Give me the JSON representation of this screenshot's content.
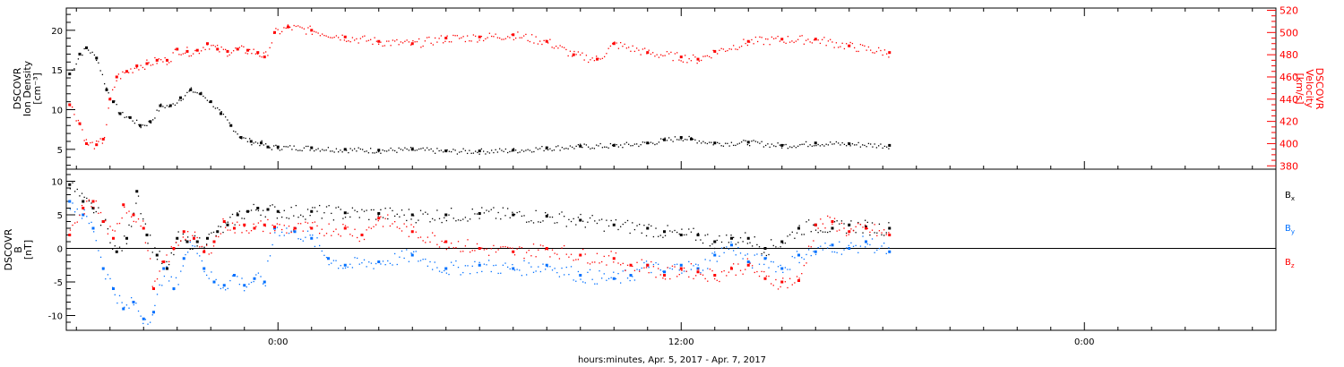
{
  "xaxis": {
    "title": "hours:minutes, Apr.  5, 2017 - Apr.  7, 2017",
    "tick_labels": [
      "0:00",
      "12:00",
      "0:00"
    ],
    "tick_hours": [
      6,
      18,
      30
    ],
    "range_hours": [
      -0.3,
      35.7
    ]
  },
  "chart_data": [
    {
      "type": "scatter",
      "ylabel_lines": [
        "DSCOVR",
        "Ion Density",
        "[cm⁻³]"
      ],
      "ylabel_right_lines": [
        "DSCOVR",
        "Velocity",
        "[km/s]"
      ],
      "ylim": [
        2.5,
        22.8
      ],
      "ytick_labels": [
        "5",
        "10",
        "15",
        "20"
      ],
      "ytick_values": [
        5,
        10,
        15,
        20
      ],
      "ylim_right": [
        377,
        522
      ],
      "ytick_right_labels": [
        "380",
        "400",
        "420",
        "440",
        "460",
        "480",
        "500",
        "520"
      ],
      "ytick_right_values": [
        380,
        400,
        420,
        440,
        460,
        480,
        500,
        520
      ],
      "series": [
        {
          "axis": "left",
          "color": "#000000",
          "x": [
            -0.2,
            0.1,
            0.3,
            0.6,
            0.9,
            1.1,
            1.3,
            1.6,
            1.9,
            2.2,
            2.5,
            2.8,
            3.1,
            3.4,
            3.7,
            4.0,
            4.3,
            4.6,
            4.9,
            5.2,
            5.5,
            5.7,
            6.0,
            7.0,
            8.0,
            9.0,
            10.0,
            11.0,
            12.0,
            13.0,
            14.0,
            15.0,
            16.0,
            17.0,
            17.5,
            18.0,
            18.3,
            19.0,
            20.0,
            21.0,
            22.0,
            23.0,
            24.2
          ],
          "y": [
            14.5,
            17.0,
            17.8,
            16.5,
            12.5,
            11.0,
            9.5,
            9.0,
            8.0,
            8.5,
            10.5,
            10.5,
            11.5,
            12.5,
            12.0,
            11.0,
            9.5,
            8.0,
            6.5,
            6.0,
            5.8,
            5.3,
            5.3,
            5.2,
            5.0,
            4.9,
            5.0,
            4.8,
            4.8,
            4.9,
            5.2,
            5.4,
            5.5,
            5.8,
            6.2,
            6.5,
            6.3,
            5.8,
            5.9,
            5.5,
            5.8,
            5.7,
            5.5
          ]
        },
        {
          "axis": "right",
          "color": "#ff0000",
          "x": [
            -0.2,
            0.1,
            0.3,
            0.6,
            0.8,
            1.0,
            1.2,
            1.5,
            1.8,
            2.1,
            2.4,
            2.7,
            3.0,
            3.3,
            3.6,
            3.9,
            4.2,
            4.5,
            4.8,
            5.1,
            5.4,
            5.6,
            5.9,
            6.3,
            7.0,
            8.0,
            9.0,
            10.0,
            11.0,
            12.0,
            13.0,
            14.0,
            14.8,
            15.5,
            16.0,
            17.0,
            18.0,
            18.5,
            19.0,
            20.0,
            21.0,
            22.0,
            23.0,
            24.2
          ],
          "y": [
            435,
            418,
            400,
            399,
            404,
            440,
            460,
            465,
            470,
            472,
            475,
            475,
            485,
            483,
            484,
            490,
            485,
            483,
            485,
            484,
            482,
            478,
            500,
            505,
            502,
            496,
            492,
            490,
            495,
            496,
            498,
            492,
            480,
            476,
            490,
            482,
            478,
            476,
            483,
            492,
            494,
            494,
            488,
            482
          ]
        }
      ]
    },
    {
      "type": "scatter",
      "ylabel_lines": [
        "DSCOVR",
        "B",
        "[nT]"
      ],
      "ylim": [
        -12.2,
        11.8
      ],
      "ytick_labels": [
        "-10",
        "-5",
        "0",
        "5",
        "10"
      ],
      "ytick_values": [
        -10,
        -5,
        0,
        5,
        10
      ],
      "zero_line": true,
      "series": [
        {
          "name": "Bx",
          "color": "#000000",
          "x": [
            -0.2,
            0.2,
            0.5,
            0.8,
            1.2,
            1.5,
            1.8,
            2.1,
            2.4,
            2.7,
            3.0,
            3.3,
            3.6,
            3.9,
            4.2,
            4.5,
            4.8,
            5.1,
            5.4,
            5.7,
            6.0,
            7.0,
            8.0,
            9.0,
            10.0,
            11.0,
            12.0,
            13.0,
            14.0,
            15.0,
            16.0,
            17.0,
            17.5,
            18.0,
            18.5,
            19.0,
            19.5,
            20.0,
            20.5,
            21.0,
            21.5,
            22.0,
            22.5,
            23.0,
            23.5,
            24.2
          ],
          "y": [
            9.5,
            7.0,
            6.0,
            4.0,
            -0.5,
            1.5,
            8.5,
            2.0,
            -1.0,
            -3.0,
            1.5,
            1.0,
            1.0,
            1.5,
            2.5,
            3.5,
            5.0,
            5.5,
            6.0,
            5.8,
            5.5,
            5.5,
            5.3,
            5.2,
            5.0,
            5.0,
            5.2,
            5.0,
            4.8,
            4.2,
            3.5,
            3.0,
            2.5,
            2.0,
            2.0,
            1.0,
            1.5,
            1.5,
            0.0,
            1.0,
            3.0,
            3.5,
            3.0,
            3.5,
            3.2,
            3.0
          ]
        },
        {
          "name": "By",
          "color": "#0070ff",
          "x": [
            -0.2,
            0.2,
            0.5,
            0.8,
            1.1,
            1.4,
            1.7,
            2.0,
            2.3,
            2.6,
            2.9,
            3.2,
            3.5,
            3.8,
            4.1,
            4.4,
            4.7,
            5.0,
            5.3,
            5.6,
            5.9,
            6.5,
            7.0,
            7.5,
            8.0,
            9.0,
            10.0,
            11.0,
            12.0,
            13.0,
            14.0,
            15.0,
            16.0,
            16.5,
            17.0,
            17.5,
            18.0,
            18.5,
            19.0,
            19.5,
            20.0,
            20.5,
            21.0,
            21.5,
            22.0,
            22.5,
            23.0,
            23.5,
            24.2
          ],
          "y": [
            7.0,
            5.0,
            3.0,
            -3.0,
            -6.0,
            -9.0,
            -8.0,
            -10.5,
            -9.5,
            -3.0,
            -6.0,
            -1.5,
            1.5,
            -3.0,
            -5.0,
            -5.5,
            -4.0,
            -5.5,
            -4.5,
            -5.0,
            3.0,
            2.5,
            1.5,
            -1.5,
            -2.5,
            -2.0,
            -1.0,
            -3.0,
            -2.5,
            -3.0,
            -2.5,
            -4.0,
            -4.5,
            -4.0,
            -2.5,
            -3.5,
            -2.5,
            -3.0,
            -1.0,
            0.5,
            -2.0,
            -1.5,
            -3.0,
            -1.0,
            -0.5,
            0.5,
            0.0,
            1.0,
            -0.5
          ]
        },
        {
          "name": "Bz",
          "color": "#ff0000",
          "x": [
            -0.2,
            0.2,
            0.5,
            0.8,
            1.1,
            1.4,
            1.7,
            2.0,
            2.3,
            2.6,
            2.9,
            3.2,
            3.5,
            3.8,
            4.1,
            4.4,
            4.7,
            5.0,
            5.3,
            5.6,
            5.9,
            6.5,
            7.0,
            8.0,
            8.5,
            9.0,
            10.0,
            11.0,
            12.0,
            13.0,
            14.0,
            15.0,
            16.0,
            16.5,
            17.0,
            17.5,
            18.0,
            18.5,
            19.0,
            19.5,
            20.0,
            20.5,
            21.0,
            21.5,
            22.0,
            22.5,
            23.0,
            23.5,
            24.2
          ],
          "y": [
            2.0,
            6.0,
            7.0,
            4.0,
            1.5,
            6.5,
            5.0,
            3.0,
            -6.0,
            -2.0,
            0.0,
            2.5,
            1.5,
            -0.5,
            1.0,
            4.0,
            3.0,
            3.5,
            3.0,
            3.5,
            3.2,
            3.0,
            3.0,
            3.0,
            2.0,
            4.5,
            2.5,
            1.0,
            0.0,
            -0.5,
            0.0,
            -1.0,
            -1.5,
            -2.5,
            -2.5,
            -4.0,
            -3.0,
            -3.5,
            -4.0,
            -3.0,
            -2.5,
            -4.5,
            -5.0,
            -4.8,
            3.5,
            4.0,
            2.5,
            3.0,
            2.0
          ]
        }
      ]
    }
  ],
  "legend": [
    {
      "label": "Bx",
      "base": "B",
      "sub": "x",
      "color": "#000000"
    },
    {
      "label": "By",
      "base": "B",
      "sub": "y",
      "color": "#0070ff"
    },
    {
      "label": "Bz",
      "base": "B",
      "sub": "z",
      "color": "#ff0000"
    }
  ]
}
